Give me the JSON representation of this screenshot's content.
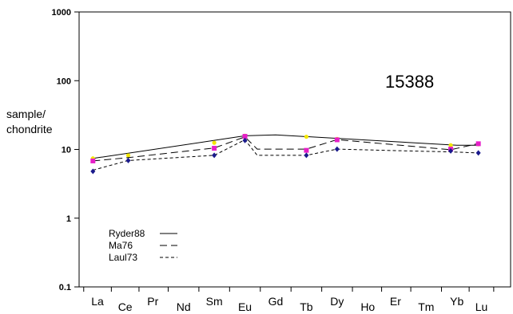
{
  "chart_data": {
    "type": "line",
    "title": "",
    "annotation": "15388",
    "ylabel_lines": [
      "sample/",
      "chondrite"
    ],
    "yscale": "log",
    "ylim": [
      0.1,
      1000
    ],
    "y_ticks": [
      0.1,
      1,
      10,
      100,
      1000
    ],
    "y_tick_labels": [
      "0.1",
      "1",
      "10",
      "100",
      "1000"
    ],
    "categories": [
      "La",
      "Ce",
      "Pr",
      "Nd",
      "Sm",
      "Eu",
      "Gd",
      "Tb",
      "Dy",
      "Ho",
      "Er",
      "Tm",
      "Yb",
      "Lu"
    ],
    "x_positions": [
      1,
      1.9,
      2.8,
      3.8,
      4.8,
      5.8,
      6.8,
      7.8,
      8.8,
      9.8,
      10.7,
      11.7,
      12.7,
      13.5
    ],
    "tick_label_offset": [
      "up",
      "down",
      "up",
      "down",
      "up",
      "down",
      "up",
      "down",
      "up",
      "down",
      "up",
      "down",
      "up",
      "down"
    ],
    "legend_position": "bottom-left",
    "grid": false,
    "series": [
      {
        "name": "Ryder88",
        "style": "solid",
        "marker": "circle",
        "marker_color": "#f2e600",
        "line_points": [
          [
            0.85,
            7.4
          ],
          [
            5.8,
            15.8
          ],
          [
            6.8,
            16.3
          ],
          [
            12.7,
            11.5
          ],
          [
            13.4,
            11.5
          ]
        ],
        "marker_points": [
          [
            0.85,
            7.4
          ],
          [
            2,
            8.2
          ],
          [
            4.8,
            12.5
          ],
          [
            5.8,
            15.8
          ],
          [
            7.8,
            15.3
          ],
          [
            8.8,
            14.2
          ],
          [
            12.5,
            11.5
          ],
          [
            13.4,
            11.9
          ]
        ]
      },
      {
        "name": "Ma76",
        "style": "dashed",
        "marker": "square",
        "marker_color": "#e61ec8",
        "line_points": [
          [
            0.85,
            6.8
          ],
          [
            2,
            7.6
          ],
          [
            4.8,
            10.5
          ],
          [
            5.8,
            15.2
          ],
          [
            6.2,
            10.1
          ],
          [
            7.8,
            10.1
          ],
          [
            8.8,
            13.9
          ],
          [
            12.5,
            9.9
          ],
          [
            13.4,
            12.2
          ]
        ],
        "marker_points": [
          [
            0.85,
            6.8
          ],
          [
            4.8,
            10.4
          ],
          [
            5.8,
            15.5
          ],
          [
            7.8,
            9.7
          ],
          [
            8.8,
            13.8
          ],
          [
            12.5,
            10.1
          ],
          [
            13.4,
            12.1
          ]
        ]
      },
      {
        "name": "Laul73",
        "style": "dotted",
        "marker": "diamond",
        "marker_color": "#1a1a8c",
        "line_points": [
          [
            0.85,
            5.0
          ],
          [
            2,
            6.9
          ],
          [
            4.8,
            8.2
          ],
          [
            5.8,
            13.8
          ],
          [
            6.2,
            8.2
          ],
          [
            7.8,
            8.2
          ],
          [
            8.8,
            10.1
          ],
          [
            10.7,
            9.6
          ],
          [
            12.5,
            9.2
          ],
          [
            13.4,
            8.9
          ]
        ],
        "marker_points": [
          [
            0.85,
            4.8
          ],
          [
            2,
            6.9
          ],
          [
            4.8,
            8.2
          ],
          [
            5.8,
            13.5
          ],
          [
            7.8,
            8.2
          ],
          [
            8.8,
            10.1
          ],
          [
            12.5,
            9.5
          ],
          [
            13.4,
            8.9
          ]
        ]
      }
    ]
  }
}
